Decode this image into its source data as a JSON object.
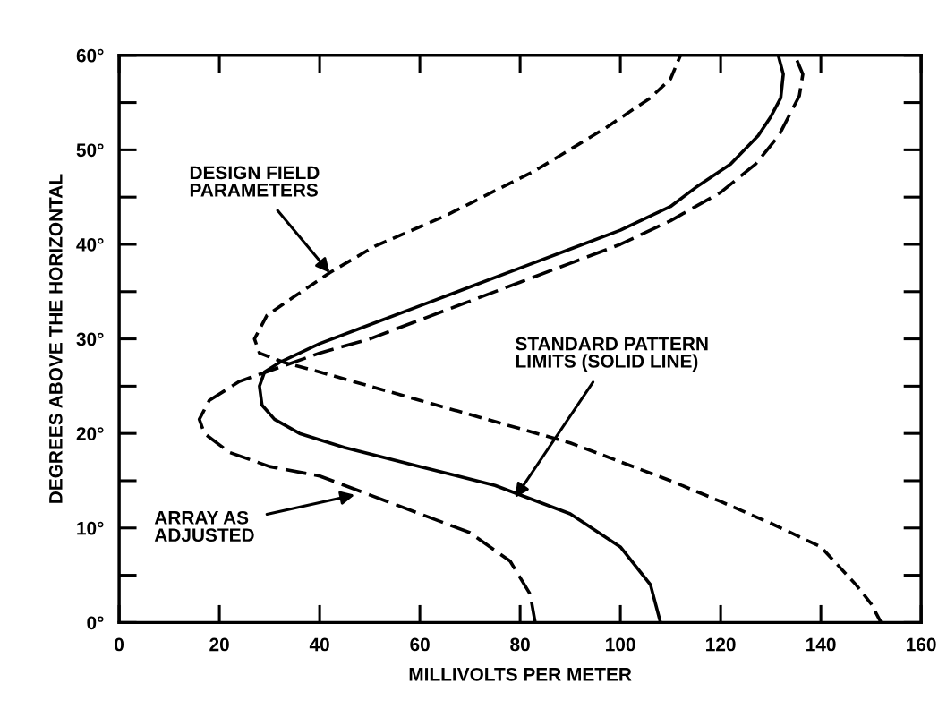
{
  "chart_data": {
    "type": "line",
    "xlabel": "MILLIVOLTS PER METER",
    "ylabel": "DEGREES ABOVE THE HORIZONTAL",
    "xlim": [
      0,
      160
    ],
    "ylim": [
      0,
      60
    ],
    "xticks": [
      0,
      20,
      40,
      60,
      80,
      100,
      120,
      140,
      160
    ],
    "yticks": [
      {
        "value": 0,
        "label": "0°"
      },
      {
        "value": 10,
        "label": "10°"
      },
      {
        "value": 20,
        "label": "20°"
      },
      {
        "value": 30,
        "label": "30°"
      },
      {
        "value": 40,
        "label": "40°"
      },
      {
        "value": 50,
        "label": "50°"
      },
      {
        "value": 60,
        "label": "60°"
      }
    ],
    "grid": false,
    "marker": "none",
    "series": [
      {
        "color": "#000000",
        "line_style": "solid",
        "x": [
          108,
          106,
          100,
          90,
          75,
          60,
          45,
          36,
          31,
          28.5,
          28,
          29,
          32,
          40,
          50,
          60,
          70,
          80,
          90,
          100,
          110,
          115,
          122,
          127.5,
          130,
          132,
          132.5,
          131.5
        ],
        "values": [
          0,
          4,
          8,
          11.5,
          14.5,
          16.5,
          18.5,
          20,
          21.5,
          23,
          25,
          26.5,
          27.5,
          29.5,
          31.5,
          33.5,
          35.5,
          37.5,
          39.5,
          41.5,
          44,
          46,
          48.5,
          51.5,
          53.5,
          55.5,
          58,
          60
        ]
      },
      {
        "color": "#000000",
        "line_style": "dashed",
        "x": [
          152,
          150,
          147,
          140,
          130,
          120,
          110,
          100,
          90,
          80,
          70,
          60,
          50,
          40,
          33,
          28,
          27,
          29.5,
          35,
          42,
          51,
          65,
          83,
          97,
          106,
          110,
          112
        ],
        "values": [
          0,
          2,
          4,
          8,
          10.5,
          12.8,
          15,
          17,
          19,
          20.5,
          22,
          23.5,
          25,
          26.5,
          27.5,
          28.5,
          30,
          32.5,
          34.5,
          37,
          39.8,
          43,
          47.8,
          52.3,
          55.5,
          57.5,
          60
        ]
      },
      {
        "color": "#000000",
        "line_style": "dotted",
        "x": [
          83,
          82,
          78,
          70,
          60,
          50,
          40,
          30,
          22,
          17,
          16,
          18,
          24,
          32,
          40,
          50,
          60,
          70,
          80,
          90,
          100,
          110,
          120,
          127,
          131.6,
          135.7,
          136.4,
          134.8
        ],
        "values": [
          0,
          3,
          6.5,
          9.5,
          11.5,
          13.5,
          15.5,
          16.5,
          18,
          20,
          21.5,
          23.5,
          25.5,
          27,
          28.5,
          30,
          32,
          34,
          36,
          38,
          40,
          42.5,
          45.5,
          48.5,
          51.5,
          55.7,
          58,
          60
        ]
      }
    ],
    "annotations": [
      {
        "text": "DESIGN FIELD\nPARAMETERS",
        "x": 42,
        "y": 37
      },
      {
        "text": "STANDARD PATTERN\nLIMITS (SOLID LINE)",
        "x": 79,
        "y": 13.2
      },
      {
        "text": "ARRAY AS\nADJUSTED",
        "x": 47,
        "y": 13.5
      }
    ]
  }
}
